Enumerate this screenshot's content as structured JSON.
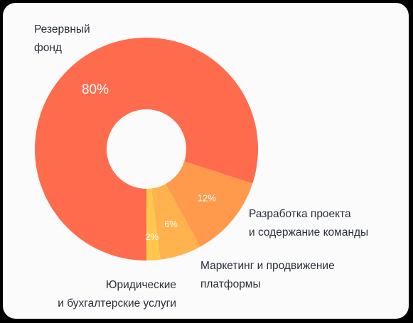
{
  "chart_data": {
    "type": "pie",
    "variant": "donut",
    "slices": [
      {
        "label_lines": [
          "Резервный",
          "фонд"
        ],
        "value": 80,
        "value_label": "80%",
        "color": "#ff6b4d"
      },
      {
        "label_lines": [
          "Разработка проекта",
          "и содержание команды"
        ],
        "value": 12,
        "value_label": "12%",
        "color": "#ff9a4d"
      },
      {
        "label_lines": [
          "Маркетинг и продвижение",
          "платформы"
        ],
        "value": 6,
        "value_label": "6%",
        "color": "#ffb24d"
      },
      {
        "label_lines": [
          "Юридические",
          "и бухгалтерские услуги"
        ],
        "value": 2,
        "value_label": "2%",
        "color": "#ffc84d"
      }
    ]
  }
}
